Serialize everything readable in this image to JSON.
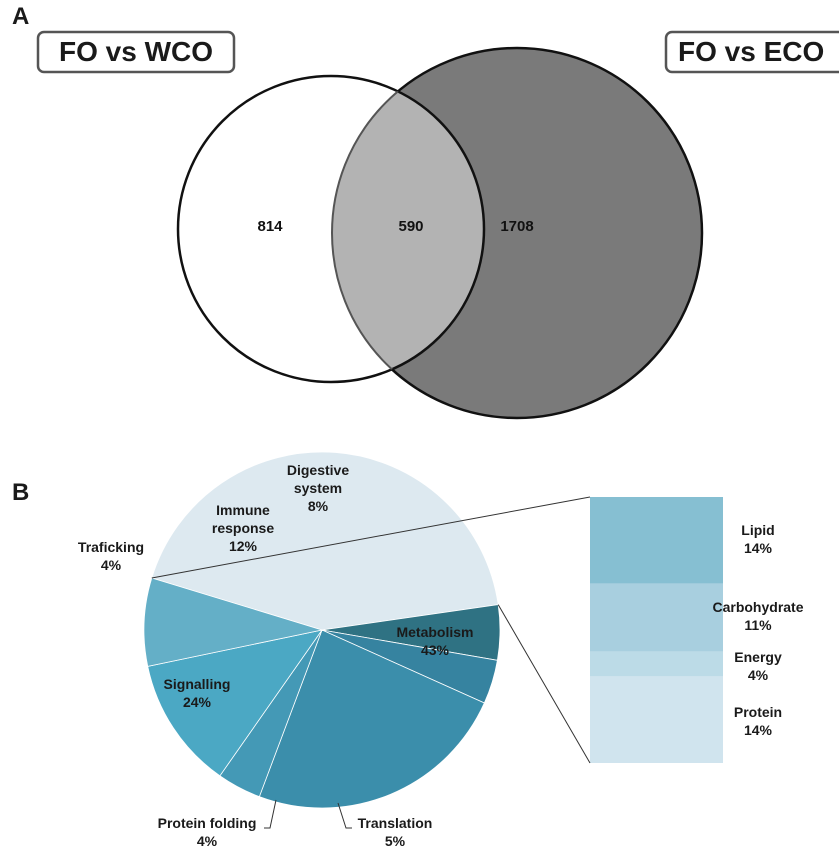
{
  "panels": {
    "a": "A",
    "b": "B"
  },
  "venn": {
    "left_title": "FO vs WCO",
    "right_title": "FO vs ECO",
    "left_only": "814",
    "overlap": "590",
    "right_only": "1708"
  },
  "chart_data": [
    {
      "type": "venn",
      "sets": [
        {
          "name": "FO vs WCO",
          "only": 814
        },
        {
          "name": "FO vs ECO",
          "only": 1708
        }
      ],
      "intersection": 590,
      "colors": {
        "left": "#ffffff",
        "right": "#7a7a7a",
        "overlap": "#b3b3b3"
      }
    },
    {
      "type": "pie",
      "slices": [
        {
          "name": "Metabolism",
          "value": 43,
          "label": "Metabolism",
          "pct": "43%",
          "color": "#dde9f0"
        },
        {
          "name": "Translation",
          "value": 5,
          "label": "Translation",
          "pct": "5%",
          "color": "#2f7283"
        },
        {
          "name": "Protein folding",
          "value": 4,
          "label": "Protein folding",
          "pct": "4%",
          "color": "#3683a0"
        },
        {
          "name": "Signalling",
          "value": 24,
          "label": "Signalling",
          "pct": "24%",
          "color": "#3b8eab"
        },
        {
          "name": "Traficking",
          "value": 4,
          "label": "Traficking",
          "pct": "4%",
          "color": "#4499b6"
        },
        {
          "name": "Immune response",
          "value": 12,
          "label": "Immune\nresponse",
          "pct": "12%",
          "color": "#4ba8c4"
        },
        {
          "name": "Digestive system",
          "value": 8,
          "label": "Digestive\nsystem",
          "pct": "8%",
          "color": "#64afc7"
        }
      ],
      "breakdown_of": "Metabolism",
      "breakdown": [
        {
          "name": "Lipid",
          "value": 14,
          "pct": "14%",
          "color": "#86bfd2"
        },
        {
          "name": "Carbohydrate",
          "value": 11,
          "pct": "11%",
          "color": "#a8cfdf"
        },
        {
          "name": "Energy",
          "value": 4,
          "pct": "4%",
          "color": "#bcdbe7"
        },
        {
          "name": "Protein",
          "value": 14,
          "pct": "14%",
          "color": "#d0e4ee"
        }
      ]
    }
  ]
}
